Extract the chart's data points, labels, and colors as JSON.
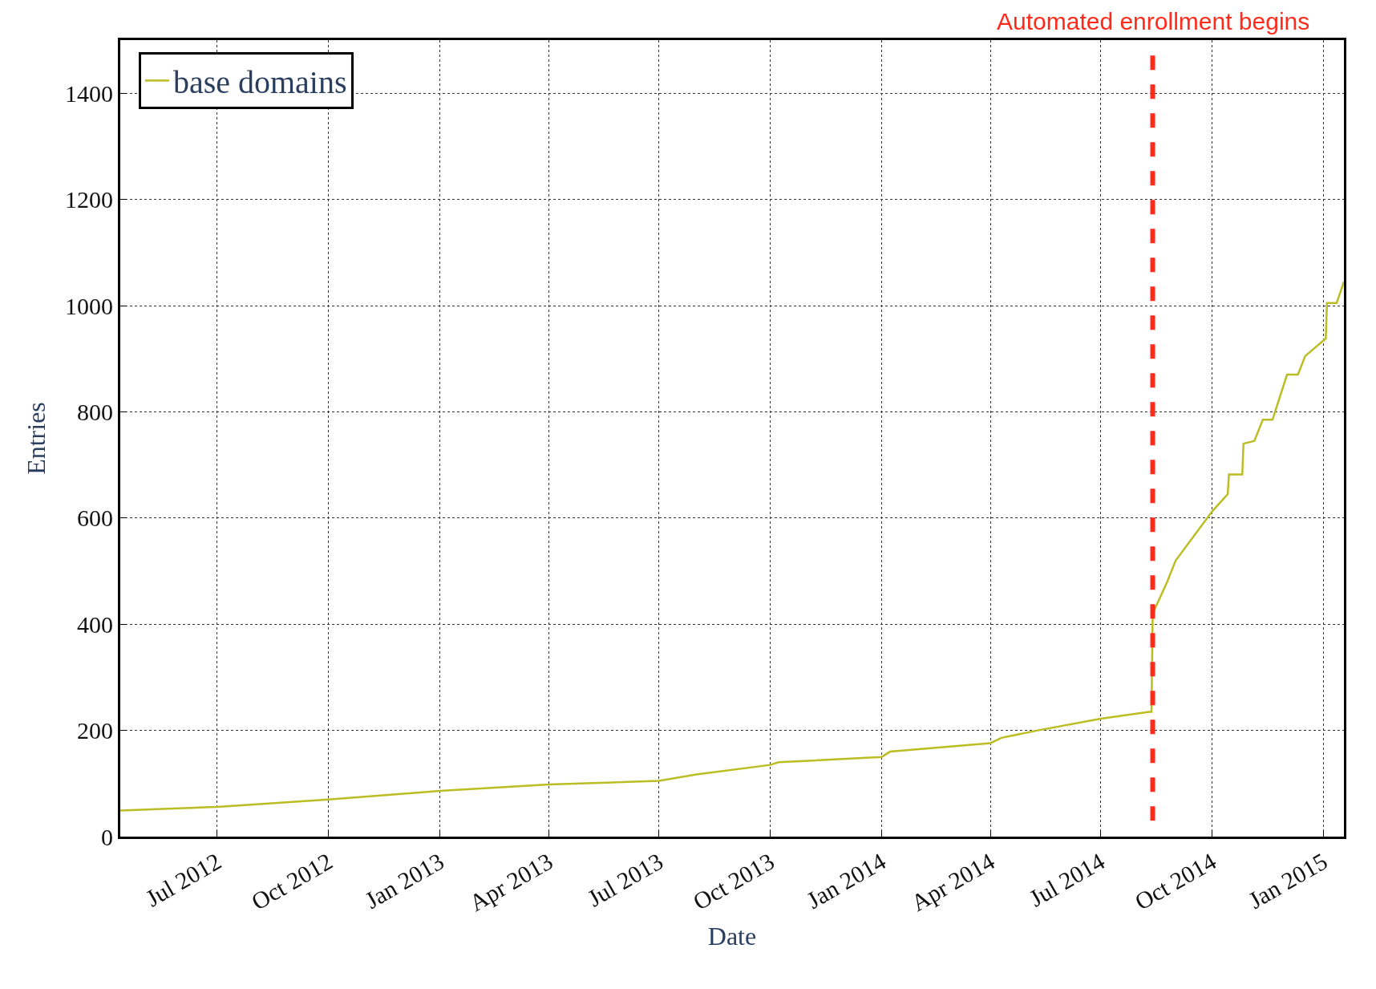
{
  "chart_data": {
    "type": "line",
    "xlabel": "Date",
    "ylabel": "Entries",
    "x": [
      "2012-04-12",
      "2012-07-01",
      "2012-10-01",
      "2013-01-01",
      "2013-04-01",
      "2013-07-01",
      "2013-08-01",
      "2013-10-01",
      "2013-10-08",
      "2014-01-01",
      "2014-01-08",
      "2014-04-01",
      "2014-04-10",
      "2014-05-10",
      "2014-07-01",
      "2014-08-10",
      "2014-08-12",
      "2014-08-13",
      "2014-08-25",
      "2014-09-01",
      "2014-10-01",
      "2014-10-14",
      "2014-10-15",
      "2014-10-26",
      "2014-10-27",
      "2014-11-05",
      "2014-11-12",
      "2014-11-20",
      "2014-12-02",
      "2014-12-11",
      "2014-12-17",
      "2015-01-03",
      "2015-01-04",
      "2015-01-12",
      "2015-01-18"
    ],
    "series": [
      {
        "name": "base domains",
        "color": "#bcbd22",
        "values": [
          49,
          56,
          70,
          86,
          98,
          105,
          117,
          135,
          140,
          150,
          160,
          176,
          186,
          200,
          222,
          235,
          235,
          420,
          480,
          520,
          612,
          645,
          682,
          682,
          740,
          745,
          785,
          785,
          870,
          870,
          905,
          938,
          1005,
          1005,
          1045
        ]
      }
    ],
    "xlim": [
      "2012-04-12",
      "2015-01-18"
    ],
    "xticks": [
      {
        "value": "2012-07-01",
        "label": "Jul 2012"
      },
      {
        "value": "2012-10-01",
        "label": "Oct 2012"
      },
      {
        "value": "2013-01-01",
        "label": "Jan 2013"
      },
      {
        "value": "2013-04-01",
        "label": "Apr 2013"
      },
      {
        "value": "2013-07-01",
        "label": "Jul 2013"
      },
      {
        "value": "2013-10-01",
        "label": "Oct 2013"
      },
      {
        "value": "2014-01-01",
        "label": "Jan 2014"
      },
      {
        "value": "2014-04-01",
        "label": "Apr 2014"
      },
      {
        "value": "2014-07-01",
        "label": "Jul 2014"
      },
      {
        "value": "2014-10-01",
        "label": "Oct 2014"
      },
      {
        "value": "2015-01-01",
        "label": "Jan 2015"
      }
    ],
    "ylim": [
      0,
      1500
    ],
    "yticks": [
      0,
      200,
      400,
      600,
      800,
      1000,
      1200,
      1400
    ],
    "ref_lines": [
      {
        "axis": "x",
        "value": "2014-08-13",
        "label": "Automated enrollment begins",
        "color": "#ff2a1a",
        "line_style": "dashed"
      }
    ],
    "grid": true,
    "legend": "top left",
    "line_style": "solid",
    "marker": "none"
  }
}
